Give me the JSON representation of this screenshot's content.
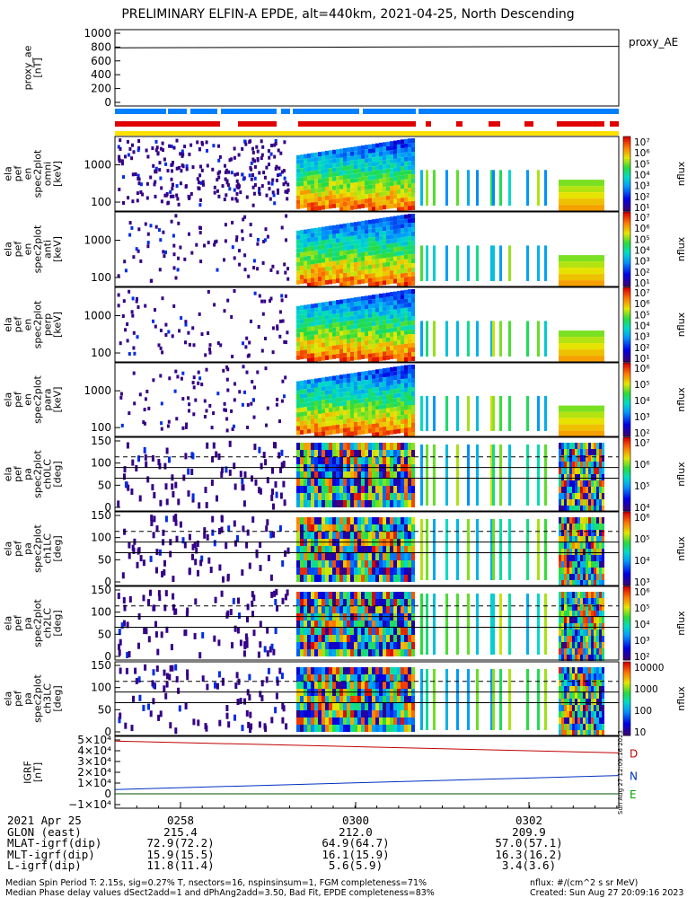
{
  "title": "PRELIMINARY ELFIN-A EPDE, alt=440km, 2021-04-25, North Descending",
  "colors": {
    "red": "#e00000",
    "blue": "#0080ff",
    "yellow": "#ffe000",
    "panel_bg": "#ffffff",
    "grf_d": "#c00000",
    "grf_n": "#0030c0",
    "grf_e": "#00a000"
  },
  "chart_data": [
    {
      "type": "line",
      "panel": "proxy_ae",
      "ylabel": "proxy_ae\n[nT]",
      "yticks": [
        "1000",
        "800",
        "600",
        "400",
        "200",
        "0"
      ],
      "ylim": [
        0,
        1000
      ],
      "series": [
        {
          "name": "proxy_AE",
          "values": [
            790,
            800,
            810
          ]
        }
      ]
    },
    {
      "type": "heatmap",
      "panel": "spec2plot_omni",
      "ylabel": [
        "ela",
        "pef",
        "en",
        "spec2plot",
        "omni",
        "[keV]"
      ],
      "yticks": [
        "1000",
        "100"
      ],
      "colorbar": {
        "label": "nflux",
        "ticks": [
          "10⁷",
          "10⁶",
          "10⁵",
          "10⁴",
          "10³",
          "10²",
          "10¹"
        ]
      }
    },
    {
      "type": "heatmap",
      "panel": "spec2plot_anti",
      "ylabel": [
        "ela",
        "pef",
        "en",
        "spec2plot",
        "anti",
        "[keV]"
      ],
      "yticks": [
        "1000",
        "100"
      ],
      "colorbar": {
        "label": "nflux",
        "ticks": [
          "10⁷",
          "10⁶",
          "10⁵",
          "10⁴",
          "10³",
          "10²",
          "10¹"
        ]
      }
    },
    {
      "type": "heatmap",
      "panel": "spec2plot_perp",
      "ylabel": [
        "ela",
        "pef",
        "en",
        "spec2plot",
        "perp",
        "[keV]"
      ],
      "yticks": [
        "1000",
        "100"
      ],
      "colorbar": {
        "label": "nflux",
        "ticks": [
          "10⁷",
          "10⁶",
          "10⁵",
          "10⁴",
          "10³",
          "10²",
          "10¹"
        ]
      }
    },
    {
      "type": "heatmap",
      "panel": "spec2plot_para",
      "ylabel": [
        "ela",
        "pef",
        "en",
        "spec2plot",
        "para",
        "[keV]"
      ],
      "yticks": [
        "1000",
        "100"
      ],
      "colorbar": {
        "label": "nflux",
        "ticks": [
          "10⁶",
          "10⁵",
          "10⁴",
          "10³",
          "10²"
        ]
      }
    },
    {
      "type": "heatmap",
      "panel": "spec2plot_ch0LC",
      "ylabel": [
        "ela",
        "pef",
        "pa",
        "spec2plot",
        "ch0LC",
        "[deg]"
      ],
      "yticks": [
        "150",
        "100",
        "50",
        "0"
      ],
      "colorbar": {
        "label": "nflux",
        "ticks": [
          "10⁷",
          "10⁶",
          "10⁵",
          "10⁴"
        ]
      }
    },
    {
      "type": "heatmap",
      "panel": "spec2plot_ch1LC",
      "ylabel": [
        "ela",
        "pef",
        "pa",
        "spec2plot",
        "ch1LC",
        "[deg]"
      ],
      "yticks": [
        "150",
        "100",
        "50",
        "0"
      ],
      "colorbar": {
        "label": "nflux",
        "ticks": [
          "10⁶",
          "10⁵",
          "10⁴",
          "10³"
        ]
      }
    },
    {
      "type": "heatmap",
      "panel": "spec2plot_ch2LC",
      "ylabel": [
        "ela",
        "pef",
        "pa",
        "spec2plot",
        "ch2LC",
        "[deg]"
      ],
      "yticks": [
        "150",
        "100",
        "50",
        "0"
      ],
      "colorbar": {
        "label": "nflux",
        "ticks": [
          "10⁶",
          "10⁵",
          "10⁴",
          "10³",
          "10²"
        ]
      }
    },
    {
      "type": "heatmap",
      "panel": "spec2plot_ch3LC",
      "ylabel": [
        "ela",
        "pef",
        "pa",
        "spec2plot",
        "ch3LC",
        "[deg]"
      ],
      "yticks": [
        "150",
        "100",
        "50",
        "0"
      ],
      "colorbar": {
        "label": "nflux",
        "ticks": [
          "10000",
          "1000",
          "100",
          "10"
        ]
      }
    },
    {
      "type": "line",
      "panel": "IGRF",
      "ylabel": "IGRF\n[nT]",
      "yticks": [
        "5×10⁴",
        "4×10⁴",
        "3×10⁴",
        "2×10⁴",
        "1×10⁴",
        "0",
        "−1×10⁴"
      ],
      "ylim": [
        -10000,
        50000
      ],
      "series": [
        {
          "name": "D",
          "values": [
            49000,
            38000
          ]
        },
        {
          "name": "N",
          "values": [
            4000,
            17000
          ]
        },
        {
          "name": "E",
          "values": [
            0,
            0
          ]
        }
      ]
    }
  ],
  "right_label": "proxy_AE",
  "created_stamp_side": "Sun Aug 27 12:09:16 2023",
  "time_axis": {
    "row_labels": [
      "2021 Apr 25",
      "GLON (east)",
      "MLAT-igrf(dip)",
      "MLT-igrf(dip)",
      "L-igrf(dip)"
    ],
    "columns": [
      {
        "time": "0258",
        "glon": "215.4",
        "mlat": "72.9(72.2)",
        "mlt": "15.9(15.5)",
        "l": "11.8(11.4)"
      },
      {
        "time": "0300",
        "glon": "212.0",
        "mlat": "64.9(64.7)",
        "mlt": "16.1(15.9)",
        "l": "5.6(5.9)"
      },
      {
        "time": "0302",
        "glon": "209.9",
        "mlat": "57.0(57.1)",
        "mlt": "16.3(16.2)",
        "l": "3.4(3.6)"
      }
    ]
  },
  "footer": {
    "line1_left": "Median Spin Period T: 2.15s, sig=0.27% T, nsectors=16, nspinsinsum=1, FGM completeness=71%",
    "line2_left": "Median Phase delay values dSect2add=1 and dPhAng2add=3.50, Bad Fit, EPDE completeness=83%",
    "line1_right": "nflux: #/(cm^2 s sr MeV)",
    "line2_right": "Created: Sun Aug 27 20:09:16 2023"
  }
}
